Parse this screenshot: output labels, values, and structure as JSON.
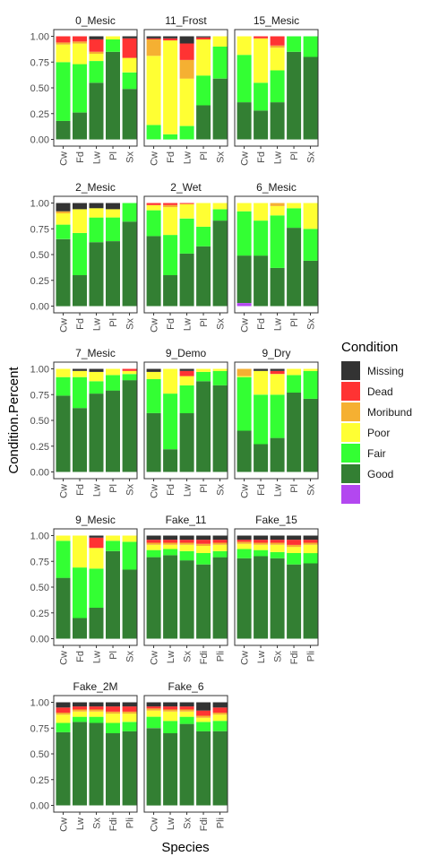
{
  "colors": {
    "Missing": "#333333",
    "Dead": "#ff3333",
    "Moribund": "#f5b032",
    "Poor": "#ffff33",
    "Fair": "#33ff33",
    "Good": "#337f33",
    "Unlabeled": "#b347f0"
  },
  "chart_data": {
    "type": "bar",
    "stacked": true,
    "xlabel": "Species",
    "ylabel": "Condition.Percent",
    "ylim": [
      0,
      1
    ],
    "yticks": [
      "0.00",
      "0.25",
      "0.50",
      "0.75",
      "1.00"
    ],
    "grid": false,
    "legend": {
      "title": "Condition",
      "position": "right",
      "items": [
        "Missing",
        "Dead",
        "Moribund",
        "Poor",
        "Fair",
        "Good",
        ""
      ]
    },
    "stack_order": [
      "Unlabeled",
      "Good",
      "Fair",
      "Poor",
      "Moribund",
      "Dead",
      "Missing"
    ],
    "panels": [
      {
        "title": "0_Mesic",
        "categories": [
          "Cw",
          "Fd",
          "Lw",
          "Pl",
          "Sx"
        ],
        "bars": [
          {
            "Good": 0.18,
            "Fair": 0.57,
            "Poor": 0.17,
            "Moribund": 0.02,
            "Dead": 0.06,
            "Missing": 0
          },
          {
            "Good": 0.26,
            "Fair": 0.47,
            "Poor": 0.2,
            "Moribund": 0.02,
            "Dead": 0.05,
            "Missing": 0
          },
          {
            "Good": 0.55,
            "Fair": 0.21,
            "Poor": 0.07,
            "Moribund": 0.02,
            "Dead": 0.12,
            "Missing": 0.03
          },
          {
            "Good": 0.85,
            "Fair": 0.12,
            "Poor": 0.03,
            "Moribund": 0,
            "Dead": 0,
            "Missing": 0
          },
          {
            "Good": 0.49,
            "Fair": 0.16,
            "Poor": 0.14,
            "Moribund": 0,
            "Dead": 0.19,
            "Missing": 0.02
          }
        ]
      },
      {
        "title": "11_Frost",
        "categories": [
          "Cw",
          "Fd",
          "Lw",
          "Pl",
          "Sx"
        ],
        "bars": [
          {
            "Good": 0,
            "Fair": 0.14,
            "Poor": 0.67,
            "Moribund": 0.16,
            "Dead": 0.01,
            "Missing": 0.02
          },
          {
            "Good": 0,
            "Fair": 0.05,
            "Poor": 0.91,
            "Moribund": 0,
            "Dead": 0.02,
            "Missing": 0.02
          },
          {
            "Good": 0,
            "Fair": 0.13,
            "Poor": 0.46,
            "Moribund": 0.18,
            "Dead": 0.16,
            "Missing": 0.07
          },
          {
            "Good": 0.33,
            "Fair": 0.29,
            "Poor": 0.35,
            "Moribund": 0,
            "Dead": 0.02,
            "Missing": 0.01
          },
          {
            "Good": 0.59,
            "Fair": 0.31,
            "Poor": 0.1,
            "Moribund": 0,
            "Dead": 0,
            "Missing": 0
          }
        ]
      },
      {
        "title": "15_Mesic",
        "categories": [
          "Cw",
          "Fd",
          "Lw",
          "Pl",
          "Sx"
        ],
        "bars": [
          {
            "Good": 0.36,
            "Fair": 0.46,
            "Poor": 0.18,
            "Moribund": 0,
            "Dead": 0,
            "Missing": 0
          },
          {
            "Good": 0.28,
            "Fair": 0.27,
            "Poor": 0.43,
            "Moribund": 0,
            "Dead": 0.02,
            "Missing": 0
          },
          {
            "Good": 0.36,
            "Fair": 0.31,
            "Poor": 0.22,
            "Moribund": 0.02,
            "Dead": 0.09,
            "Missing": 0
          },
          {
            "Good": 0.85,
            "Fair": 0.15,
            "Poor": 0,
            "Moribund": 0,
            "Dead": 0,
            "Missing": 0
          },
          {
            "Good": 0.8,
            "Fair": 0.2,
            "Poor": 0,
            "Moribund": 0,
            "Dead": 0,
            "Missing": 0
          }
        ]
      },
      {
        "title": "2_Mesic",
        "categories": [
          "Cw",
          "Fd",
          "Lw",
          "Pl",
          "Sx"
        ],
        "bars": [
          {
            "Good": 0.65,
            "Fair": 0.14,
            "Poor": 0.11,
            "Moribund": 0.02,
            "Dead": 0,
            "Missing": 0.08
          },
          {
            "Good": 0.3,
            "Fair": 0.41,
            "Poor": 0.23,
            "Moribund": 0,
            "Dead": 0,
            "Missing": 0.06
          },
          {
            "Good": 0.62,
            "Fair": 0.24,
            "Poor": 0.09,
            "Moribund": 0,
            "Dead": 0,
            "Missing": 0.05
          },
          {
            "Good": 0.63,
            "Fair": 0.23,
            "Poor": 0.08,
            "Moribund": 0,
            "Dead": 0,
            "Missing": 0.06
          },
          {
            "Good": 0.82,
            "Fair": 0.18,
            "Poor": 0,
            "Moribund": 0,
            "Dead": 0,
            "Missing": 0
          }
        ]
      },
      {
        "title": "2_Wet",
        "categories": [
          "Cw",
          "Fd",
          "Lw",
          "Pl",
          "Sx"
        ],
        "bars": [
          {
            "Good": 0.68,
            "Fair": 0.25,
            "Poor": 0.05,
            "Moribund": 0,
            "Dead": 0.02,
            "Missing": 0
          },
          {
            "Good": 0.3,
            "Fair": 0.39,
            "Poor": 0.27,
            "Moribund": 0.02,
            "Dead": 0.02,
            "Missing": 0
          },
          {
            "Good": 0.51,
            "Fair": 0.34,
            "Poor": 0.14,
            "Moribund": 0,
            "Dead": 0.01,
            "Missing": 0
          },
          {
            "Good": 0.58,
            "Fair": 0.19,
            "Poor": 0.23,
            "Moribund": 0,
            "Dead": 0,
            "Missing": 0
          },
          {
            "Good": 0.83,
            "Fair": 0.11,
            "Poor": 0.06,
            "Moribund": 0,
            "Dead": 0,
            "Missing": 0
          }
        ]
      },
      {
        "title": "6_Mesic",
        "categories": [
          "Cw",
          "Fd",
          "Lw",
          "Pl",
          "Sx"
        ],
        "bars": [
          {
            "Unlabeled": 0.03,
            "Good": 0.46,
            "Fair": 0.43,
            "Poor": 0.08,
            "Moribund": 0,
            "Dead": 0,
            "Missing": 0
          },
          {
            "Good": 0.49,
            "Fair": 0.34,
            "Poor": 0.17,
            "Moribund": 0,
            "Dead": 0,
            "Missing": 0
          },
          {
            "Good": 0.37,
            "Fair": 0.51,
            "Poor": 0.09,
            "Moribund": 0.03,
            "Dead": 0,
            "Missing": 0
          },
          {
            "Good": 0.76,
            "Fair": 0.19,
            "Poor": 0.05,
            "Moribund": 0,
            "Dead": 0,
            "Missing": 0
          },
          {
            "Good": 0.44,
            "Fair": 0.31,
            "Poor": 0.25,
            "Moribund": 0,
            "Dead": 0,
            "Missing": 0
          }
        ]
      },
      {
        "title": "7_Mesic",
        "categories": [
          "Cw",
          "Fd",
          "Lw",
          "Pl",
          "Sx"
        ],
        "bars": [
          {
            "Good": 0.74,
            "Fair": 0.18,
            "Poor": 0.08,
            "Moribund": 0,
            "Dead": 0,
            "Missing": 0
          },
          {
            "Good": 0.62,
            "Fair": 0.3,
            "Poor": 0.06,
            "Moribund": 0,
            "Dead": 0,
            "Missing": 0.02
          },
          {
            "Good": 0.76,
            "Fair": 0.12,
            "Poor": 0.09,
            "Moribund": 0,
            "Dead": 0,
            "Missing": 0.03
          },
          {
            "Good": 0.79,
            "Fair": 0.15,
            "Poor": 0.06,
            "Moribund": 0,
            "Dead": 0,
            "Missing": 0
          },
          {
            "Good": 0.89,
            "Fair": 0.06,
            "Poor": 0.03,
            "Moribund": 0,
            "Dead": 0.02,
            "Missing": 0
          }
        ]
      },
      {
        "title": "9_Demo",
        "categories": [
          "Cw",
          "Fd",
          "Lw",
          "Pl",
          "Sx"
        ],
        "bars": [
          {
            "Good": 0.57,
            "Fair": 0.33,
            "Poor": 0.07,
            "Moribund": 0,
            "Dead": 0,
            "Missing": 0.03
          },
          {
            "Good": 0.22,
            "Fair": 0.54,
            "Poor": 0.24,
            "Moribund": 0,
            "Dead": 0,
            "Missing": 0
          },
          {
            "Good": 0.57,
            "Fair": 0.27,
            "Poor": 0.09,
            "Moribund": 0,
            "Dead": 0.05,
            "Missing": 0.02
          },
          {
            "Good": 0.88,
            "Fair": 0.09,
            "Poor": 0.03,
            "Moribund": 0,
            "Dead": 0,
            "Missing": 0
          },
          {
            "Good": 0.84,
            "Fair": 0.14,
            "Poor": 0.02,
            "Moribund": 0,
            "Dead": 0,
            "Missing": 0
          }
        ]
      },
      {
        "title": "9_Dry",
        "categories": [
          "Cw",
          "Fd",
          "Lw",
          "Pl",
          "Sx"
        ],
        "bars": [
          {
            "Good": 0.4,
            "Fair": 0.52,
            "Poor": 0.01,
            "Moribund": 0.07,
            "Dead": 0,
            "Missing": 0
          },
          {
            "Good": 0.27,
            "Fair": 0.48,
            "Poor": 0.23,
            "Moribund": 0,
            "Dead": 0,
            "Missing": 0.02
          },
          {
            "Good": 0.33,
            "Fair": 0.42,
            "Poor": 0.2,
            "Moribund": 0,
            "Dead": 0.03,
            "Missing": 0.02
          },
          {
            "Good": 0.77,
            "Fair": 0.17,
            "Poor": 0.06,
            "Moribund": 0,
            "Dead": 0,
            "Missing": 0
          },
          {
            "Good": 0.71,
            "Fair": 0.27,
            "Poor": 0.02,
            "Moribund": 0,
            "Dead": 0,
            "Missing": 0
          }
        ]
      },
      {
        "title": "9_Mesic",
        "categories": [
          "Cw",
          "Fd",
          "Lw",
          "Pl",
          "Sx"
        ],
        "bars": [
          {
            "Good": 0.59,
            "Fair": 0.36,
            "Poor": 0.05,
            "Moribund": 0,
            "Dead": 0,
            "Missing": 0
          },
          {
            "Good": 0.2,
            "Fair": 0.49,
            "Poor": 0.31,
            "Moribund": 0,
            "Dead": 0,
            "Missing": 0
          },
          {
            "Good": 0.3,
            "Fair": 0.38,
            "Poor": 0.2,
            "Moribund": 0,
            "Dead": 0.1,
            "Missing": 0.02
          },
          {
            "Good": 0.85,
            "Fair": 0.1,
            "Poor": 0.05,
            "Moribund": 0,
            "Dead": 0,
            "Missing": 0
          },
          {
            "Good": 0.67,
            "Fair": 0.27,
            "Poor": 0.06,
            "Moribund": 0,
            "Dead": 0,
            "Missing": 0
          }
        ]
      },
      {
        "title": "Fake_11",
        "categories": [
          "Cw",
          "Lw",
          "Sx",
          "Fdi",
          "Pli"
        ],
        "bars": [
          {
            "Good": 0.79,
            "Fair": 0.07,
            "Poor": 0.05,
            "Moribund": 0.02,
            "Dead": 0.03,
            "Missing": 0.04
          },
          {
            "Good": 0.81,
            "Fair": 0.06,
            "Poor": 0.04,
            "Moribund": 0.02,
            "Dead": 0.03,
            "Missing": 0.04
          },
          {
            "Good": 0.76,
            "Fair": 0.09,
            "Poor": 0.06,
            "Moribund": 0.02,
            "Dead": 0.03,
            "Missing": 0.04
          },
          {
            "Good": 0.72,
            "Fair": 0.11,
            "Poor": 0.07,
            "Moribund": 0.02,
            "Dead": 0.04,
            "Missing": 0.04
          },
          {
            "Good": 0.79,
            "Fair": 0.06,
            "Poor": 0.06,
            "Moribund": 0.02,
            "Dead": 0.03,
            "Missing": 0.04
          }
        ]
      },
      {
        "title": "Fake_15",
        "categories": [
          "Cw",
          "Lw",
          "Sx",
          "Fdi",
          "Pli"
        ],
        "bars": [
          {
            "Good": 0.78,
            "Fair": 0.09,
            "Poor": 0.05,
            "Moribund": 0.02,
            "Dead": 0.02,
            "Missing": 0.04
          },
          {
            "Good": 0.8,
            "Fair": 0.06,
            "Poor": 0.05,
            "Moribund": 0.02,
            "Dead": 0.03,
            "Missing": 0.04
          },
          {
            "Good": 0.78,
            "Fair": 0.06,
            "Poor": 0.07,
            "Moribund": 0.02,
            "Dead": 0.03,
            "Missing": 0.04
          },
          {
            "Good": 0.72,
            "Fair": 0.11,
            "Poor": 0.06,
            "Moribund": 0.02,
            "Dead": 0.05,
            "Missing": 0.04
          },
          {
            "Good": 0.73,
            "Fair": 0.1,
            "Poor": 0.08,
            "Moribund": 0.02,
            "Dead": 0.03,
            "Missing": 0.04
          }
        ]
      },
      {
        "title": "Fake_2M",
        "categories": [
          "Cw",
          "Lw",
          "Sx",
          "Fdi",
          "Pli"
        ],
        "bars": [
          {
            "Good": 0.71,
            "Fair": 0.09,
            "Poor": 0.08,
            "Moribund": 0.02,
            "Dead": 0.05,
            "Missing": 0.05
          },
          {
            "Good": 0.81,
            "Fair": 0.05,
            "Poor": 0.05,
            "Moribund": 0.02,
            "Dead": 0.03,
            "Missing": 0.04
          },
          {
            "Good": 0.8,
            "Fair": 0.06,
            "Poor": 0.05,
            "Moribund": 0.02,
            "Dead": 0.03,
            "Missing": 0.04
          },
          {
            "Good": 0.7,
            "Fair": 0.1,
            "Poor": 0.09,
            "Moribund": 0.02,
            "Dead": 0.05,
            "Missing": 0.04
          },
          {
            "Good": 0.72,
            "Fair": 0.09,
            "Poor": 0.08,
            "Moribund": 0.02,
            "Dead": 0.05,
            "Missing": 0.04
          }
        ]
      },
      {
        "title": "Fake_6",
        "categories": [
          "Cw",
          "Lw",
          "Sx",
          "Fdi",
          "Pli"
        ],
        "bars": [
          {
            "Good": 0.75,
            "Fair": 0.11,
            "Poor": 0.06,
            "Moribund": 0.02,
            "Dead": 0.02,
            "Missing": 0.04
          },
          {
            "Good": 0.7,
            "Fair": 0.12,
            "Poor": 0.09,
            "Moribund": 0.02,
            "Dead": 0.03,
            "Missing": 0.04
          },
          {
            "Good": 0.79,
            "Fair": 0.07,
            "Poor": 0.05,
            "Moribund": 0.02,
            "Dead": 0.03,
            "Missing": 0.04
          },
          {
            "Good": 0.72,
            "Fair": 0.09,
            "Poor": 0.04,
            "Moribund": 0.02,
            "Dead": 0.05,
            "Missing": 0.08
          },
          {
            "Good": 0.72,
            "Fair": 0.1,
            "Poor": 0.06,
            "Moribund": 0.02,
            "Dead": 0.05,
            "Missing": 0.05
          }
        ]
      }
    ]
  }
}
